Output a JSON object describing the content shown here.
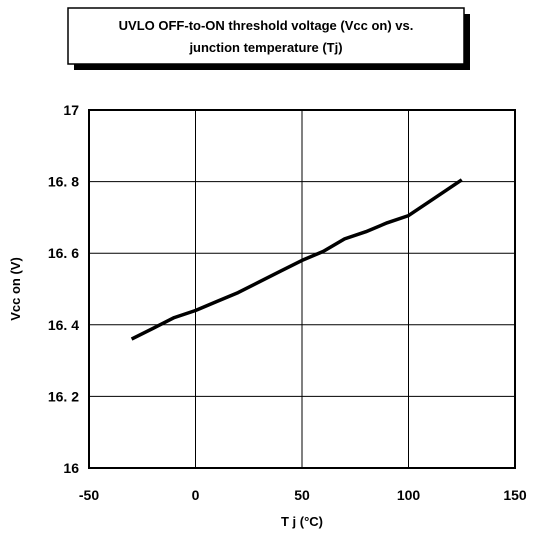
{
  "chart_data": {
    "type": "line",
    "title_line1": "UVLO OFF-to-ON threshold voltage (Vcc on) vs.",
    "title_line2": "junction temperature (Tj)",
    "xlabel": "T j (°C)",
    "ylabel": "Vcc on (V)",
    "xlim": [
      -50,
      150
    ],
    "ylim": [
      16,
      17
    ],
    "x_ticks": [
      -50,
      0,
      50,
      100,
      150
    ],
    "x_tick_labels": [
      "-50",
      "0",
      "50",
      "100",
      "150"
    ],
    "y_ticks": [
      16,
      16.2,
      16.4,
      16.6,
      16.8,
      17
    ],
    "y_tick_labels": [
      "16",
      "16. 2",
      "16. 4",
      "16. 6",
      "16. 8",
      "17"
    ],
    "grid": true,
    "series": [
      {
        "x": [
          -30,
          -20,
          -10,
          0,
          10,
          20,
          30,
          40,
          50,
          60,
          70,
          80,
          90,
          100,
          110,
          125
        ],
        "y": [
          16.36,
          16.39,
          16.42,
          16.44,
          16.465,
          16.49,
          16.52,
          16.55,
          16.58,
          16.605,
          16.64,
          16.66,
          16.685,
          16.705,
          16.745,
          16.805
        ]
      }
    ]
  }
}
